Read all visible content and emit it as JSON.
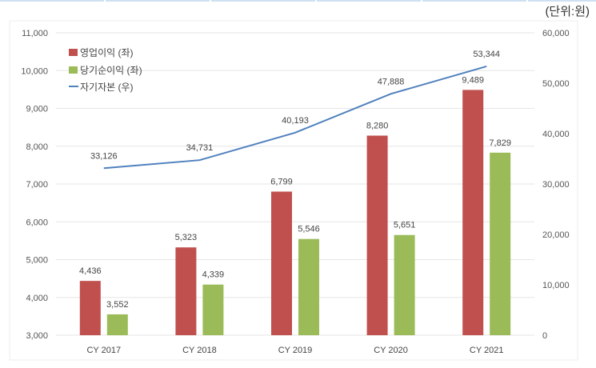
{
  "unit_label": "(단위:원)",
  "chart_data": {
    "type": "bar",
    "categories": [
      "CY 2017",
      "CY 2018",
      "CY 2019",
      "CY 2020",
      "CY 2021"
    ],
    "series": [
      {
        "name": "영업이익 (좌)",
        "type": "bar",
        "axis": "left",
        "color": "#c0504d",
        "values": [
          4436,
          5323,
          6799,
          8280,
          9489
        ],
        "labels": [
          "4,436",
          "5,323",
          "6,799",
          "8,280",
          "9,489"
        ]
      },
      {
        "name": "당기순이익 (좌)",
        "type": "bar",
        "axis": "left",
        "color": "#9bbb59",
        "values": [
          3552,
          4339,
          5546,
          5651,
          7829
        ],
        "labels": [
          "3,552",
          "4,339",
          "5,546",
          "5,651",
          "7,829"
        ]
      },
      {
        "name": "자기자본 (우)",
        "type": "line",
        "axis": "right",
        "color": "#4f81bd",
        "values": [
          33126,
          34731,
          40193,
          47888,
          53344
        ],
        "labels": [
          "33,126",
          "34,731",
          "40,193",
          "47,888",
          "53,344"
        ]
      }
    ],
    "left_axis": {
      "ylim": [
        3000,
        11000
      ],
      "ticks": [
        "3,000",
        "4,000",
        "5,000",
        "6,000",
        "7,000",
        "8,000",
        "9,000",
        "10,000",
        "11,000"
      ]
    },
    "right_axis": {
      "ylim": [
        0,
        60000
      ],
      "ticks": [
        "0",
        "10,000",
        "20,000",
        "30,000",
        "40,000",
        "50,000",
        "60,000"
      ]
    },
    "grid": true,
    "legend_position": "top-left"
  }
}
